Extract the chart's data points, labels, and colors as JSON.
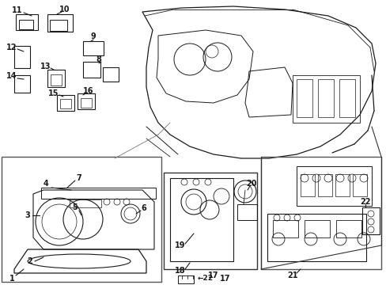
{
  "bg_color": "#ffffff",
  "lc": "#1a1a1a",
  "lw": 0.8,
  "figsize": [
    4.89,
    3.6
  ],
  "dpi": 100
}
